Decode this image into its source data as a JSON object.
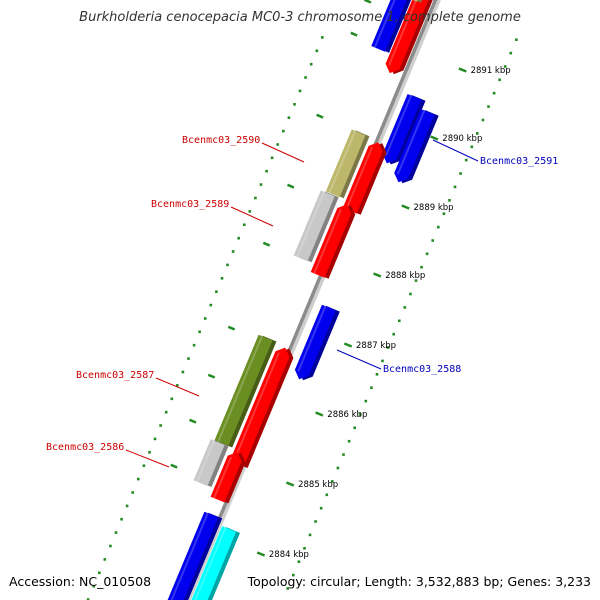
{
  "title": "Burkholderia cenocepacia MC0-3 chromosome 1, complete genome",
  "footer": {
    "accession": "Accession: NC_010508",
    "summary": "Topology: circular; Length: 3,532,883 bp; Genes: 3,233"
  },
  "colors": {
    "backbone": "#8c8c8c",
    "tick_minor": "#228b22",
    "tick_major": "#228b22",
    "forward_label": "#cc0000",
    "reverse_label": "#0000bb",
    "red_gene": "#ff0000",
    "blue_gene": "#0000ee",
    "olive_gene": "#6b8e23",
    "khaki_gene": "#bdb76b",
    "grey_gene": "#c8c8c8",
    "cyan_gene": "#00ffff"
  },
  "ticks": [
    {
      "label": "2891 kbp"
    },
    {
      "label": "2890 kbp"
    },
    {
      "label": "2889 kbp"
    },
    {
      "label": "2888 kbp"
    },
    {
      "label": "2887 kbp"
    },
    {
      "label": "2886 kbp"
    },
    {
      "label": "2885 kbp"
    },
    {
      "label": "2884 kbp"
    }
  ],
  "gene_labels": [
    {
      "text": "Bcenmc03_2590",
      "strand": "forward"
    },
    {
      "text": "Bcenmc03_2589",
      "strand": "forward"
    },
    {
      "text": "Bcenmc03_2587",
      "strand": "forward"
    },
    {
      "text": "Bcenmc03_2586",
      "strand": "forward"
    },
    {
      "text": "Bcenmc03_2591",
      "strand": "reverse"
    },
    {
      "text": "Bcenmc03_2588",
      "strand": "reverse"
    }
  ]
}
